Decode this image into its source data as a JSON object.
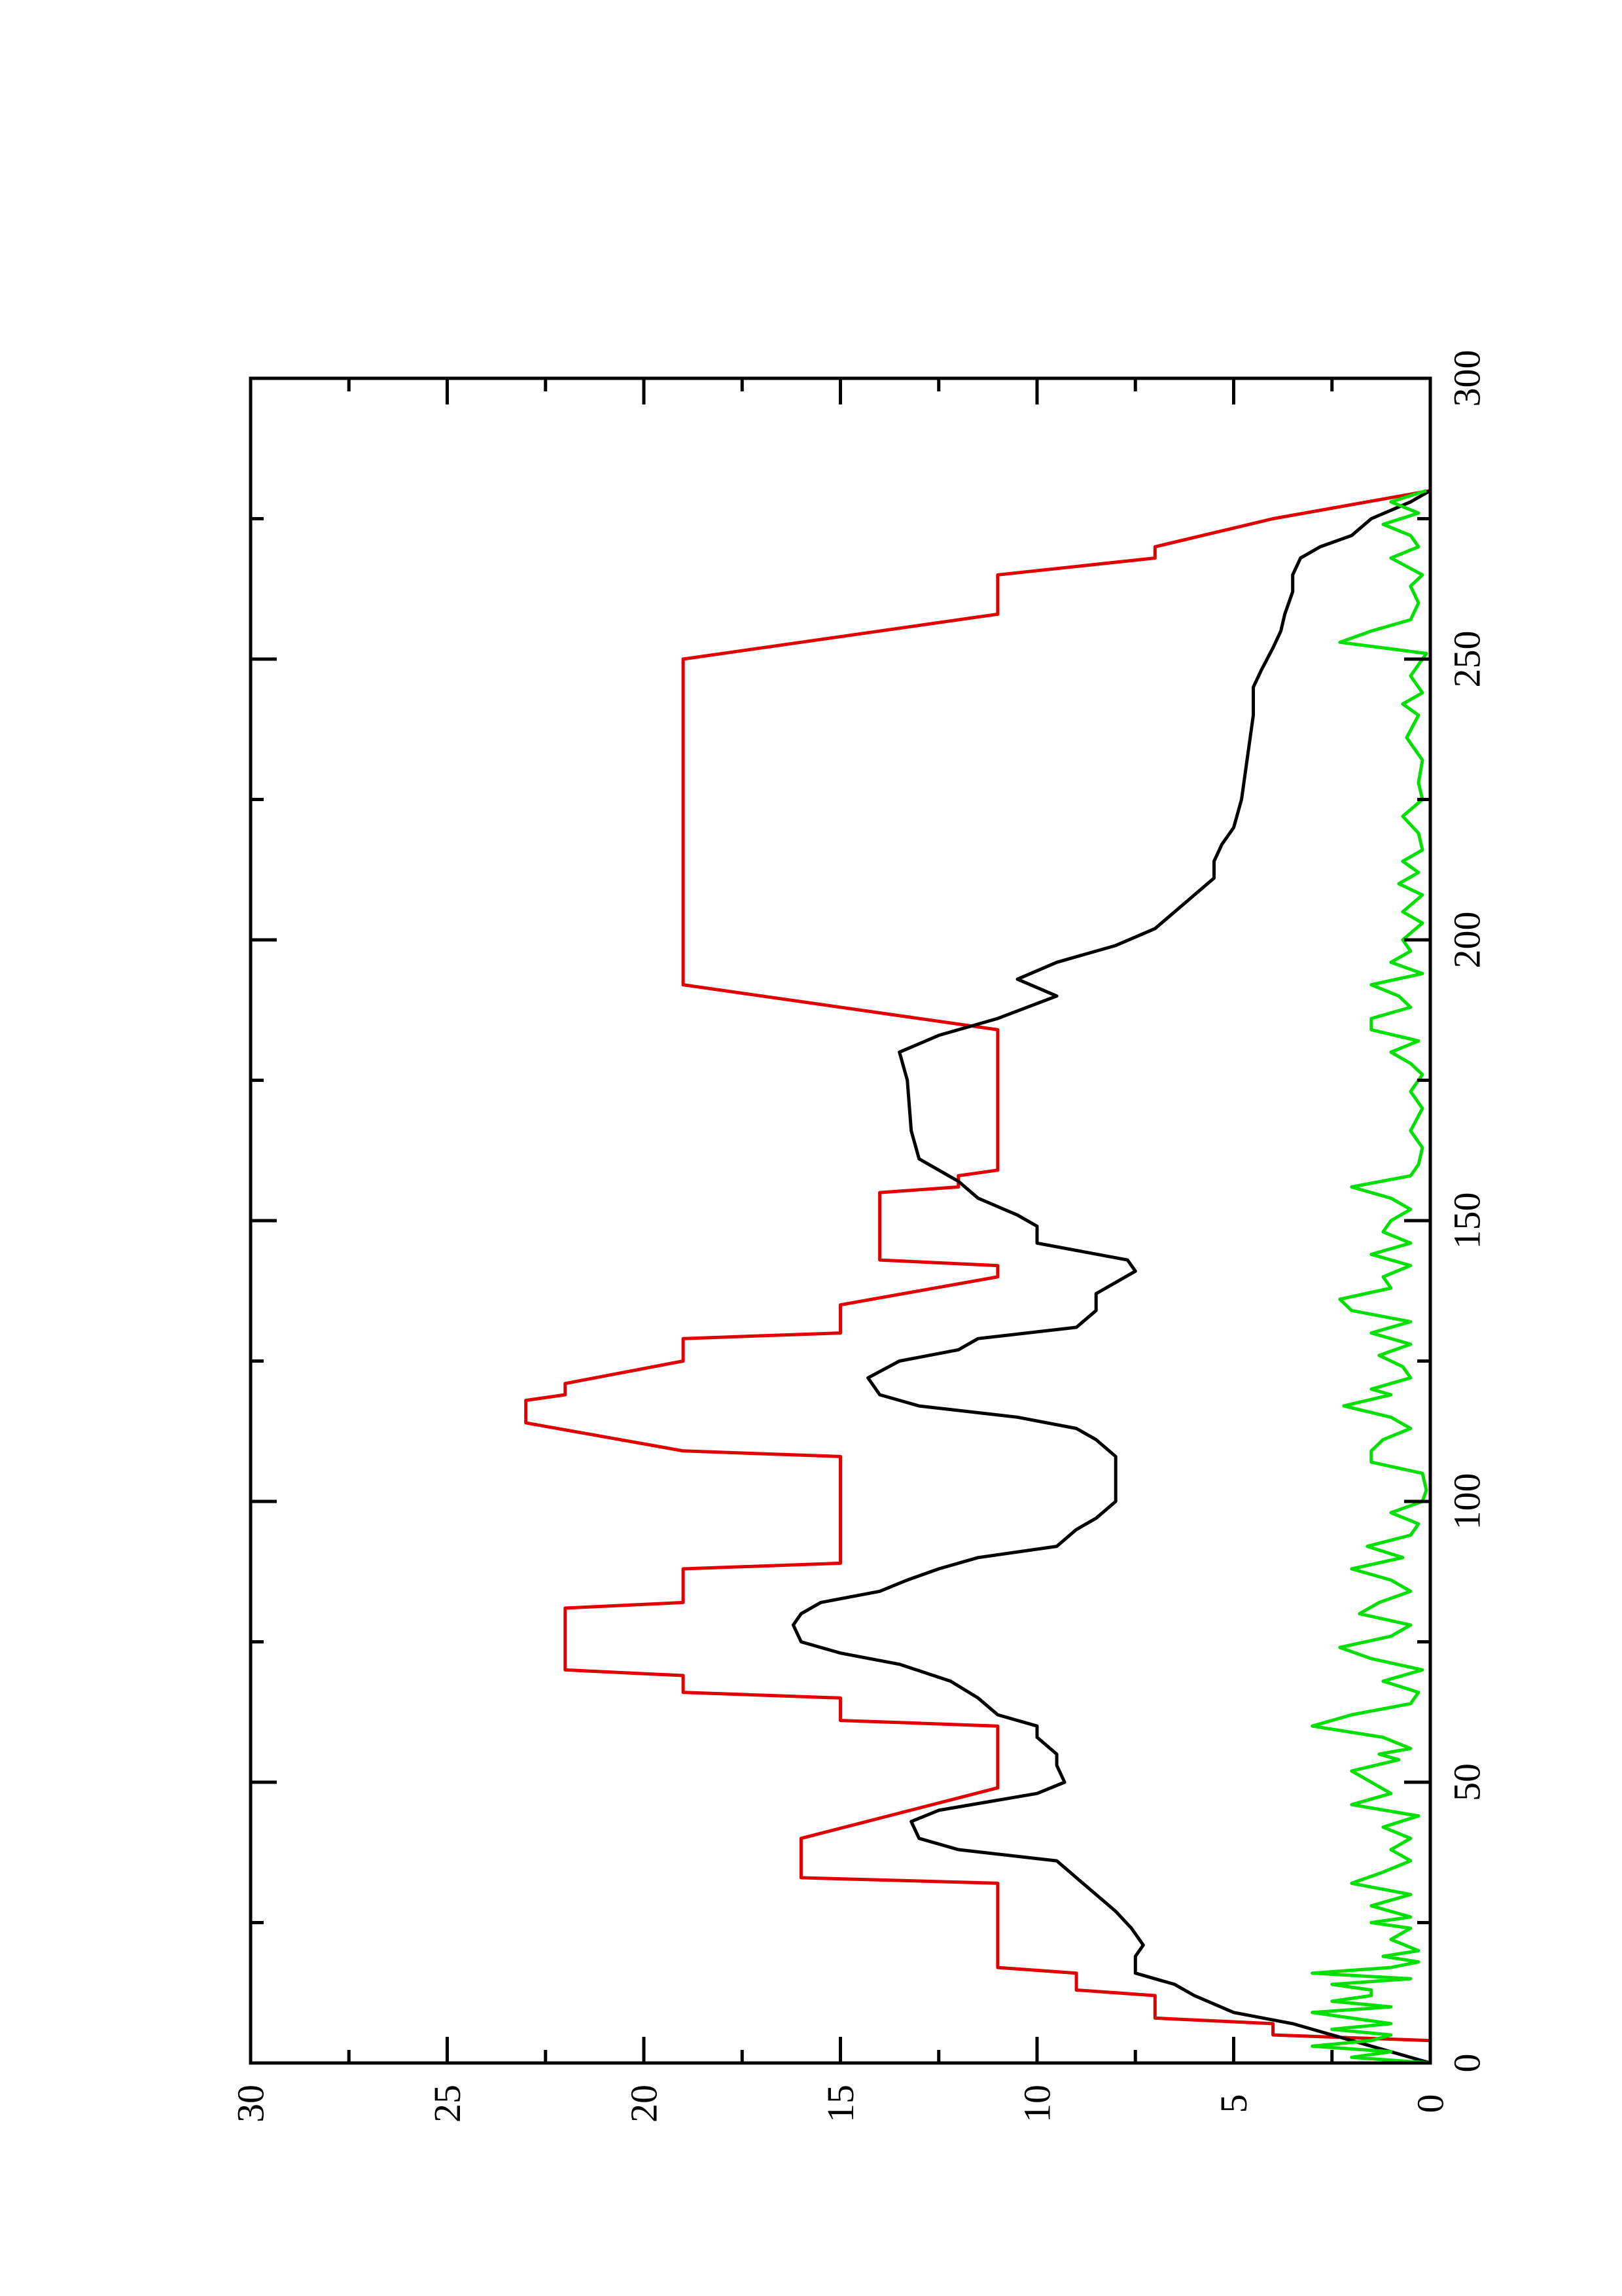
{
  "chart_data": {
    "type": "line",
    "orientation": "rotated-90-ccw",
    "title": "",
    "xlabel": "",
    "ylabel": "",
    "xlim": [
      0,
      300
    ],
    "ylim": [
      0,
      30
    ],
    "x_ticks": [
      0,
      50,
      100,
      150,
      200,
      250,
      300
    ],
    "y_ticks": [
      0,
      5,
      10,
      15,
      20,
      25,
      30
    ],
    "x_tick_labels": [
      "0",
      "50",
      "100",
      "150",
      "200",
      "250",
      "300"
    ],
    "y_tick_labels": [
      "0",
      "5",
      "10",
      "15",
      "20",
      "25",
      "30"
    ],
    "grid": false,
    "legend": "none",
    "series": [
      {
        "color": "#e00000",
        "points": [
          [
            0,
            0
          ],
          [
            4,
            0
          ],
          [
            5,
            4
          ],
          [
            7,
            4
          ],
          [
            8,
            7
          ],
          [
            12,
            7
          ],
          [
            13,
            9
          ],
          [
            16,
            9
          ],
          [
            17,
            11
          ],
          [
            32,
            11
          ],
          [
            33,
            16
          ],
          [
            40,
            16
          ],
          [
            49,
            11
          ],
          [
            60,
            11
          ],
          [
            61,
            15
          ],
          [
            65,
            15
          ],
          [
            66,
            19
          ],
          [
            69,
            19
          ],
          [
            70,
            22
          ],
          [
            81,
            22
          ],
          [
            82,
            19
          ],
          [
            88,
            19
          ],
          [
            89,
            15
          ],
          [
            108,
            15
          ],
          [
            109,
            19
          ],
          [
            114,
            23
          ],
          [
            118,
            23
          ],
          [
            119,
            22
          ],
          [
            121,
            22
          ],
          [
            125,
            19
          ],
          [
            129,
            19
          ],
          [
            130,
            15
          ],
          [
            135,
            15
          ],
          [
            140,
            11
          ],
          [
            142,
            11
          ],
          [
            143,
            14
          ],
          [
            149,
            14
          ],
          [
            150,
            14
          ],
          [
            155,
            14
          ],
          [
            156,
            12
          ],
          [
            158,
            12
          ],
          [
            159,
            11
          ],
          [
            184,
            11
          ],
          [
            192,
            19
          ],
          [
            250,
            19
          ],
          [
            258,
            11
          ],
          [
            264,
            11
          ],
          [
            265,
            11
          ],
          [
            268,
            7
          ],
          [
            270,
            7
          ],
          [
            275,
            4
          ],
          [
            280,
            0
          ]
        ]
      },
      {
        "color": "#000000",
        "points": [
          [
            0,
            0
          ],
          [
            4,
            2
          ],
          [
            7,
            3.5
          ],
          [
            9,
            5
          ],
          [
            12,
            6
          ],
          [
            14,
            6.5
          ],
          [
            16,
            7.5
          ],
          [
            19,
            7.5
          ],
          [
            21,
            7.3
          ],
          [
            24,
            7.6
          ],
          [
            27,
            8
          ],
          [
            30,
            8.5
          ],
          [
            33,
            9
          ],
          [
            36,
            9.5
          ],
          [
            38,
            12
          ],
          [
            40,
            13
          ],
          [
            43,
            13.2
          ],
          [
            45,
            12.5
          ],
          [
            48,
            10
          ],
          [
            50,
            9.3
          ],
          [
            53,
            9.5
          ],
          [
            55,
            9.5
          ],
          [
            58,
            10
          ],
          [
            60,
            10
          ],
          [
            62,
            11
          ],
          [
            65,
            11.5
          ],
          [
            68,
            12.2
          ],
          [
            71,
            13.5
          ],
          [
            73,
            15
          ],
          [
            75,
            16
          ],
          [
            78,
            16.2
          ],
          [
            80,
            16
          ],
          [
            82,
            15.5
          ],
          [
            84,
            14
          ],
          [
            86,
            13.3
          ],
          [
            88,
            12.5
          ],
          [
            90,
            11.5
          ],
          [
            92,
            9.5
          ],
          [
            95,
            9
          ],
          [
            97,
            8.5
          ],
          [
            100,
            8
          ],
          [
            103,
            8
          ],
          [
            108,
            8
          ],
          [
            111,
            8.5
          ],
          [
            113,
            9
          ],
          [
            115,
            10.5
          ],
          [
            117,
            13
          ],
          [
            119,
            14
          ],
          [
            122,
            14.3
          ],
          [
            125,
            13.5
          ],
          [
            127,
            12
          ],
          [
            129,
            11.5
          ],
          [
            131,
            9
          ],
          [
            134,
            8.5
          ],
          [
            137,
            8.5
          ],
          [
            139,
            8
          ],
          [
            141,
            7.5
          ],
          [
            143,
            7.7
          ],
          [
            146,
            10
          ],
          [
            149,
            10
          ],
          [
            151,
            10.5
          ],
          [
            154,
            11.5
          ],
          [
            157,
            12
          ],
          [
            161,
            13
          ],
          [
            166,
            13.2
          ],
          [
            175,
            13.3
          ],
          [
            180,
            13.5
          ],
          [
            183,
            12.5
          ],
          [
            186,
            11
          ],
          [
            190,
            9.5
          ],
          [
            193,
            10.5
          ],
          [
            196,
            9.5
          ],
          [
            199,
            8
          ],
          [
            202,
            7
          ],
          [
            205,
            6.5
          ],
          [
            208,
            6
          ],
          [
            211,
            5.5
          ],
          [
            214,
            5.5
          ],
          [
            217,
            5.3
          ],
          [
            220,
            5
          ],
          [
            225,
            4.8
          ],
          [
            230,
            4.7
          ],
          [
            235,
            4.6
          ],
          [
            240,
            4.5
          ],
          [
            245,
            4.5
          ],
          [
            248,
            4.3
          ],
          [
            252,
            4
          ],
          [
            255,
            3.8
          ],
          [
            258,
            3.7
          ],
          [
            262,
            3.5
          ],
          [
            265,
            3.5
          ],
          [
            268,
            3.3
          ],
          [
            270,
            2.8
          ],
          [
            272,
            2
          ],
          [
            275,
            1.5
          ],
          [
            278,
            0.5
          ],
          [
            280,
            0
          ]
        ]
      },
      {
        "color": "#00e000",
        "points": [
          [
            0,
            0
          ],
          [
            1,
            2
          ],
          [
            2,
            1
          ],
          [
            3,
            3
          ],
          [
            4,
            1.5
          ],
          [
            5,
            1
          ],
          [
            6,
            2.5
          ],
          [
            7,
            1
          ],
          [
            8,
            2
          ],
          [
            9,
            3
          ],
          [
            10,
            1
          ],
          [
            11,
            2.5
          ],
          [
            12,
            1.5
          ],
          [
            13,
            1.5
          ],
          [
            14,
            2.5
          ],
          [
            15,
            0.5
          ],
          [
            16,
            3
          ],
          [
            17,
            1
          ],
          [
            18,
            0.3
          ],
          [
            19,
            1.2
          ],
          [
            20,
            0.3
          ],
          [
            22,
            1
          ],
          [
            24,
            0.5
          ],
          [
            25,
            1.5
          ],
          [
            26,
            0.5
          ],
          [
            28,
            1.5
          ],
          [
            30,
            0.5
          ],
          [
            32,
            2
          ],
          [
            34,
            1.2
          ],
          [
            36,
            0.5
          ],
          [
            38,
            1
          ],
          [
            40,
            0.5
          ],
          [
            42,
            1.2
          ],
          [
            44,
            0.3
          ],
          [
            46,
            2
          ],
          [
            48,
            1
          ],
          [
            50,
            1.5
          ],
          [
            52,
            2
          ],
          [
            54,
            0.8
          ],
          [
            55,
            1.3
          ],
          [
            56,
            0.5
          ],
          [
            58,
            1.2
          ],
          [
            60,
            3
          ],
          [
            62,
            2
          ],
          [
            64,
            0.5
          ],
          [
            66,
            0.3
          ],
          [
            68,
            1.2
          ],
          [
            70,
            0.2
          ],
          [
            72,
            1.5
          ],
          [
            74,
            2.3
          ],
          [
            76,
            1
          ],
          [
            78,
            0.5
          ],
          [
            80,
            1.8
          ],
          [
            82,
            1.3
          ],
          [
            84,
            0.5
          ],
          [
            86,
            1
          ],
          [
            88,
            2
          ],
          [
            90,
            0.7
          ],
          [
            92,
            1.6
          ],
          [
            94,
            0.5
          ],
          [
            96,
            0.3
          ],
          [
            98,
            1
          ],
          [
            100,
            0.2
          ],
          [
            102,
            0.1
          ],
          [
            105,
            0.2
          ],
          [
            107,
            1.5
          ],
          [
            109,
            1.5
          ],
          [
            111,
            1.2
          ],
          [
            113,
            0.5
          ],
          [
            115,
            1
          ],
          [
            117,
            2.2
          ],
          [
            119,
            1
          ],
          [
            120,
            1.5
          ],
          [
            122,
            0.5
          ],
          [
            124,
            0.7
          ],
          [
            126,
            1.3
          ],
          [
            128,
            0.5
          ],
          [
            130,
            1.5
          ],
          [
            132,
            0.5
          ],
          [
            134,
            2
          ],
          [
            136,
            2.3
          ],
          [
            138,
            1
          ],
          [
            140,
            1.2
          ],
          [
            142,
            0.5
          ],
          [
            144,
            1.5
          ],
          [
            146,
            0.5
          ],
          [
            148,
            1.2
          ],
          [
            150,
            1
          ],
          [
            152,
            0.5
          ],
          [
            154,
            1
          ],
          [
            156,
            2
          ],
          [
            158,
            0.5
          ],
          [
            160,
            0.3
          ],
          [
            163,
            0.2
          ],
          [
            166,
            0.5
          ],
          [
            170,
            0.2
          ],
          [
            173,
            0.5
          ],
          [
            176,
            0.2
          ],
          [
            178,
            0.5
          ],
          [
            180,
            1
          ],
          [
            182,
            0.3
          ],
          [
            184,
            1.5
          ],
          [
            186,
            1.5
          ],
          [
            188,
            0.5
          ],
          [
            190,
            0.8
          ],
          [
            192,
            1.5
          ],
          [
            194,
            0.2
          ],
          [
            196,
            1
          ],
          [
            198,
            0.5
          ],
          [
            200,
            0.7
          ],
          [
            203,
            0.2
          ],
          [
            205,
            0.7
          ],
          [
            208,
            0.2
          ],
          [
            210,
            0.8
          ],
          [
            212,
            0.3
          ],
          [
            214,
            0.7
          ],
          [
            216,
            0.2
          ],
          [
            219,
            0.3
          ],
          [
            222,
            0.7
          ],
          [
            225,
            0.2
          ],
          [
            228,
            0.3
          ],
          [
            232,
            0.2
          ],
          [
            236,
            0.6
          ],
          [
            240,
            0.3
          ],
          [
            242,
            0.7
          ],
          [
            244,
            0.2
          ],
          [
            247,
            0.5
          ],
          [
            249,
            0.3
          ],
          [
            251,
            0.1
          ],
          [
            253,
            2.3
          ],
          [
            255,
            1.5
          ],
          [
            257,
            0.5
          ],
          [
            260,
            0.3
          ],
          [
            263,
            0.5
          ],
          [
            265,
            0.2
          ],
          [
            268,
            1
          ],
          [
            270,
            0.3
          ],
          [
            272,
            0.5
          ],
          [
            274,
            1.2
          ],
          [
            276,
            0.3
          ],
          [
            278,
            1
          ],
          [
            280,
            0.1
          ]
        ]
      }
    ]
  }
}
